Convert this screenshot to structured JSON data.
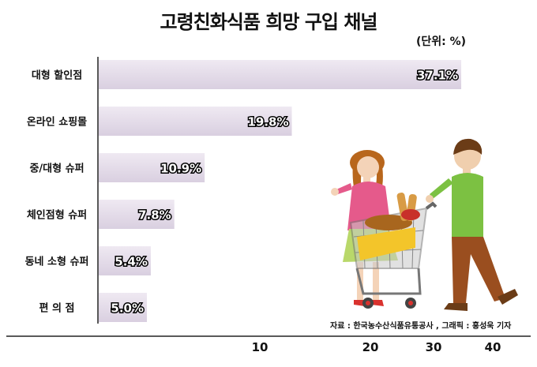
{
  "chart_data": {
    "type": "bar",
    "orientation": "horizontal",
    "title": "고령친화식품 희망 구입 채널",
    "unit": "(단위: %)",
    "categories": [
      "대형 할인점",
      "온라인 쇼핑몰",
      "중/대형 슈퍼",
      "체인점형 슈퍼",
      "동네 소형 슈퍼",
      "편 의 점"
    ],
    "values": [
      37.1,
      19.8,
      10.9,
      7.8,
      5.4,
      5.0
    ],
    "value_labels": [
      "37.1%",
      "19.8%",
      "10.9%",
      "7.8%",
      "5.4%",
      "5.0%"
    ],
    "x_ticks": [
      10,
      20,
      30,
      40
    ],
    "x_tick_labels": [
      "10",
      "20",
      "30",
      "40"
    ],
    "xlim": [
      0,
      40
    ],
    "grid": false,
    "legend": "none",
    "bar_color": "#e6deea",
    "source": "자료 : 한국농수산식품유통공사 , 그래픽 : 홍성욱 기자"
  },
  "illustration": {
    "description_icon": "shopping-couple-with-cart-icon"
  }
}
